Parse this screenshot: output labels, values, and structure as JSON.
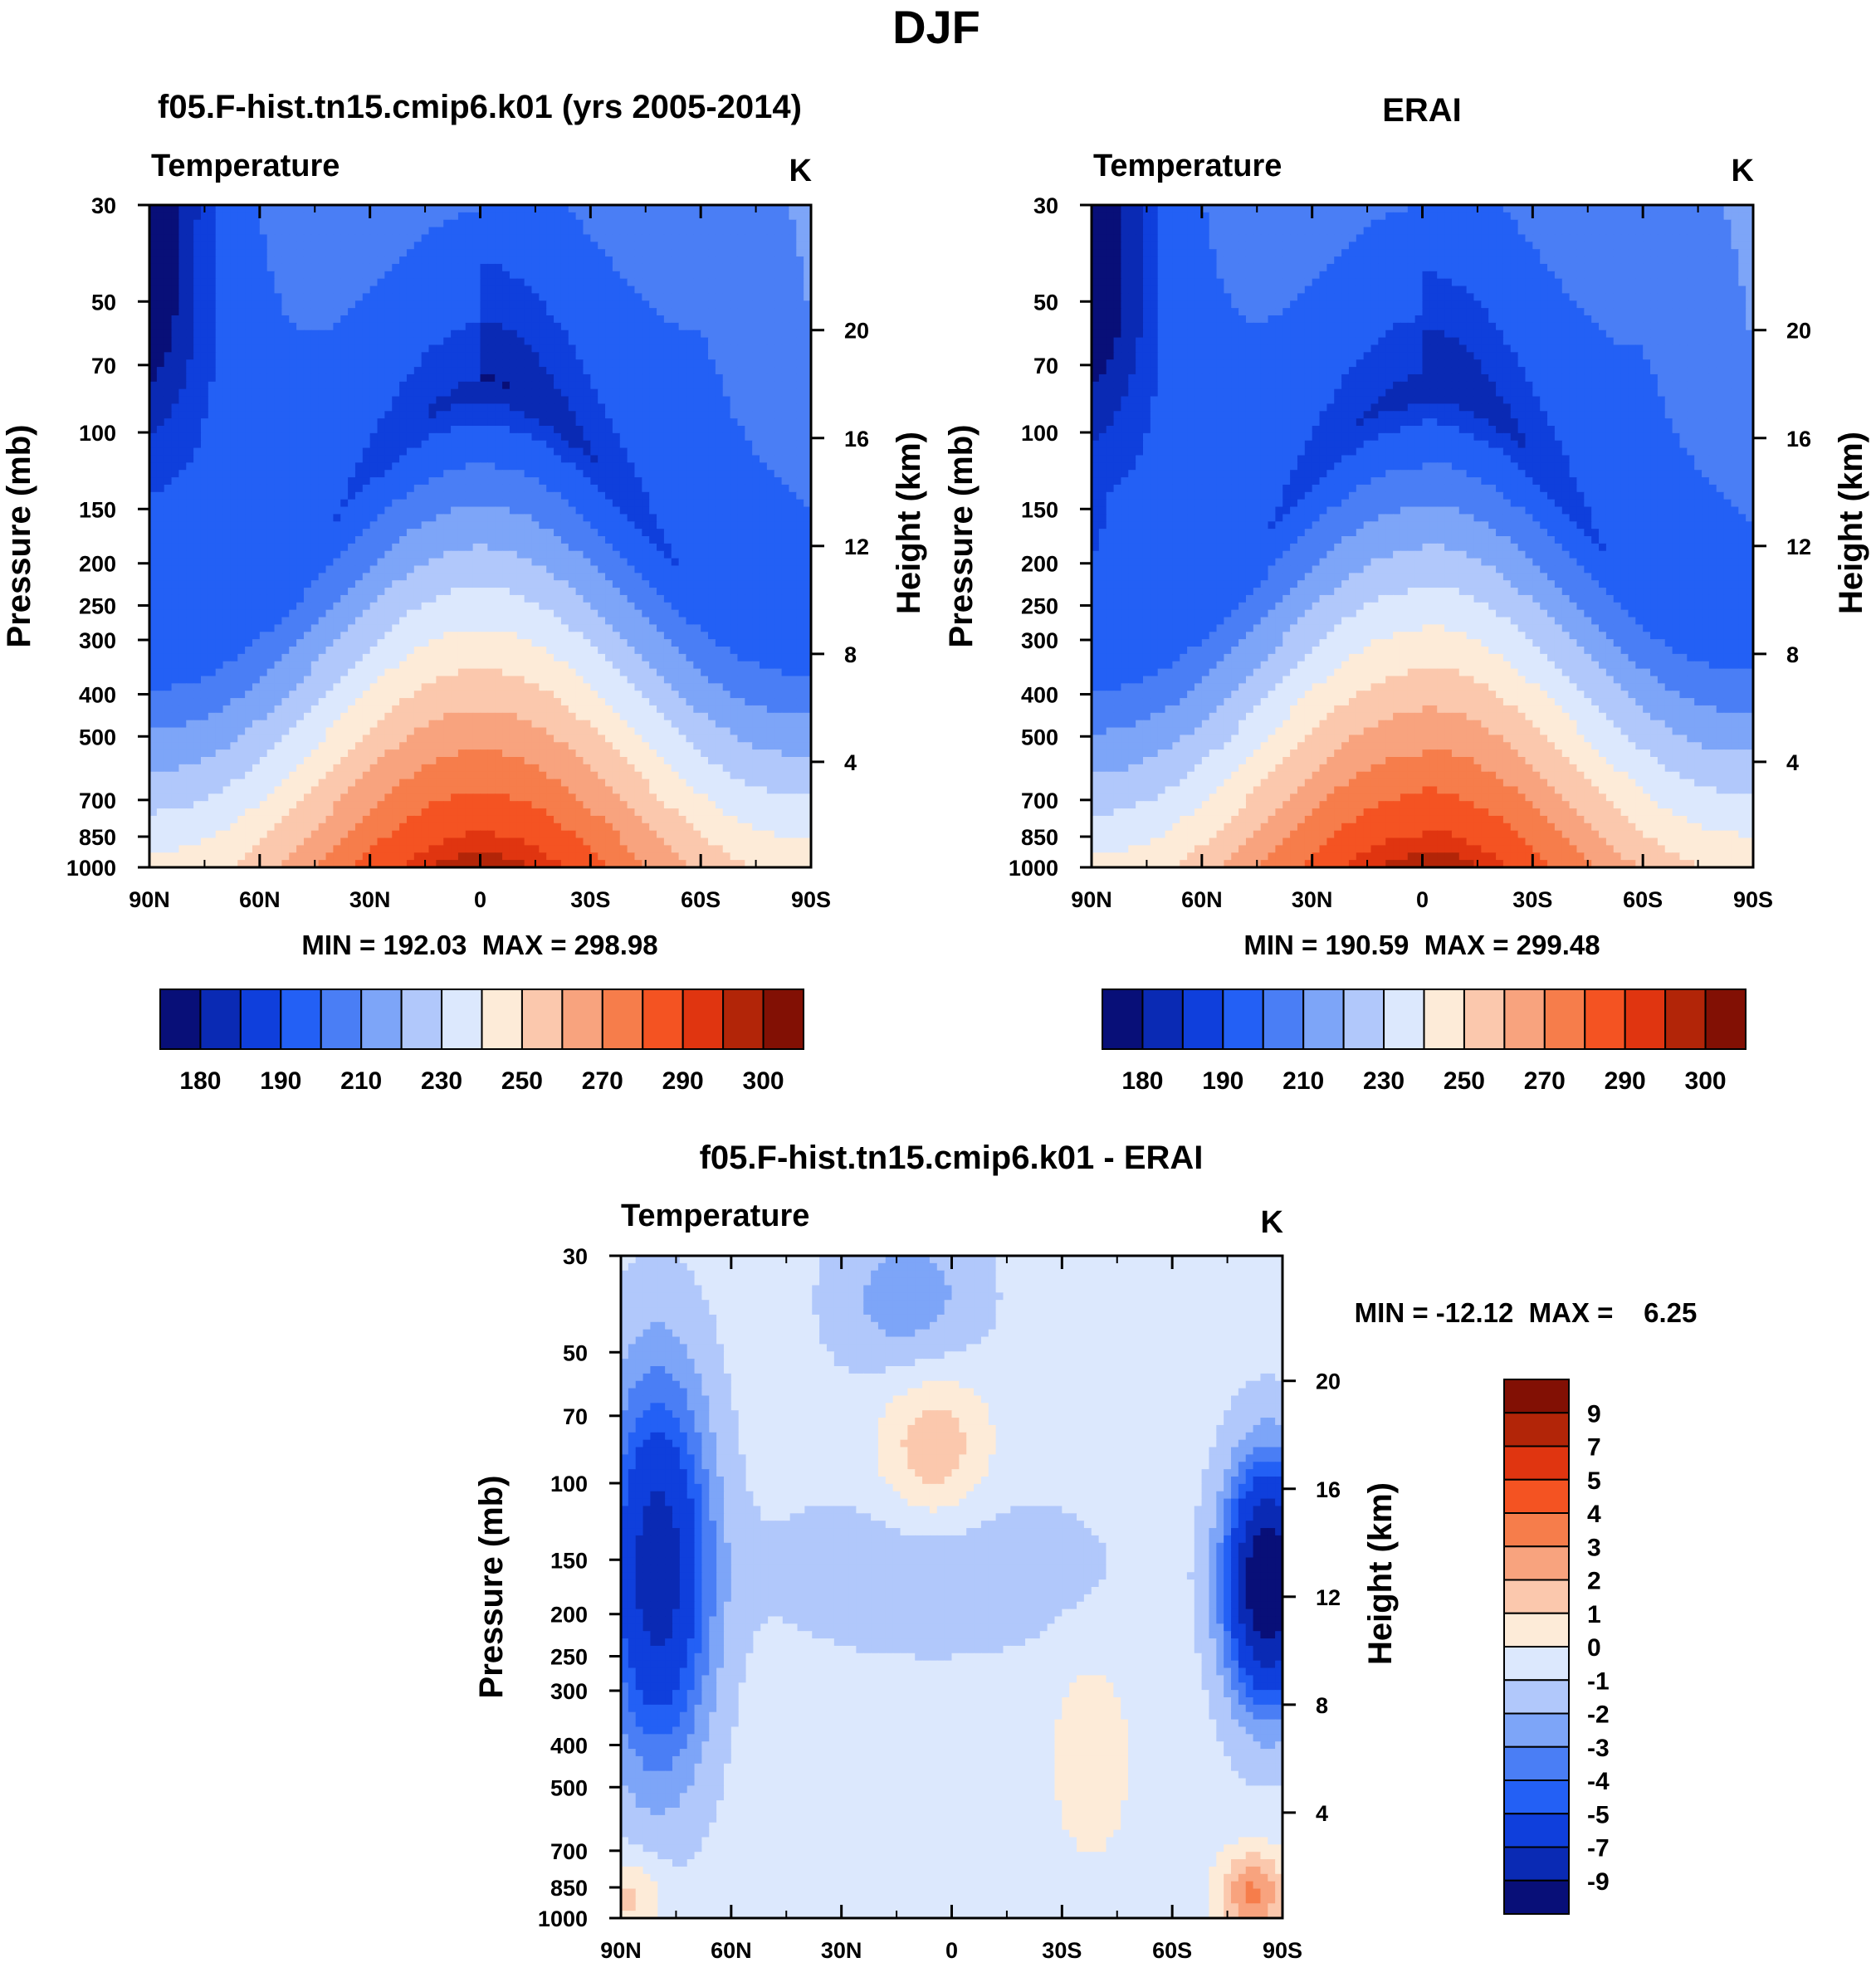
{
  "figure": {
    "title": "DJF"
  },
  "colors": {
    "abs_palette": [
      "#080f78",
      "#0a2ab4",
      "#0f3fdc",
      "#2360f5",
      "#4a7ef5",
      "#7da5f8",
      "#b1c8fb",
      "#dce8fd",
      "#fdebd8",
      "#fbc8ad",
      "#f8a37e",
      "#f67d4b",
      "#f45322",
      "#e03510",
      "#b22508",
      "#821004"
    ],
    "diff_palette": [
      "#080f78",
      "#0a2ab4",
      "#0f3fdc",
      "#2360f5",
      "#4a7ef5",
      "#7da5f8",
      "#b1c8fb",
      "#dce8fd",
      "#fdebd8",
      "#fbc8ad",
      "#f8a37e",
      "#f67d4b",
      "#f45322",
      "#e03510",
      "#b22508",
      "#821004"
    ]
  },
  "chart_data": [
    {
      "type": "heatmap",
      "title": "f05.F-hist.tn15.cmip6.k01 (yrs 2005-2014)",
      "left_label": "Temperature",
      "units": "K",
      "xlabel": "",
      "ylabel": "Pressure (mb)",
      "y2label": "Height (km)",
      "x_ticks": [
        "90N",
        "60N",
        "30N",
        "0",
        "30S",
        "60S",
        "90S"
      ],
      "x_values": [
        90,
        60,
        30,
        0,
        -30,
        -60,
        -90
      ],
      "y_ticks": [
        30,
        50,
        70,
        100,
        150,
        200,
        250,
        300,
        400,
        500,
        700,
        850,
        1000
      ],
      "y_scale": "log",
      "y_range": [
        1000,
        30
      ],
      "y2_ticks": [
        4,
        8,
        12,
        16,
        20
      ],
      "stats": "MIN = 192.03  MAX = 298.98",
      "min": 192.03,
      "max": 298.98,
      "colorbar_labels": [
        "180",
        "190",
        "210",
        "230",
        "250",
        "270",
        "290",
        "300"
      ]
    },
    {
      "type": "heatmap",
      "title": "ERAI",
      "left_label": "Temperature",
      "units": "K",
      "xlabel": "",
      "ylabel": "Pressure (mb)",
      "y2label": "Height (km)",
      "x_ticks": [
        "90N",
        "60N",
        "30N",
        "0",
        "30S",
        "60S",
        "90S"
      ],
      "x_values": [
        90,
        60,
        30,
        0,
        -30,
        -60,
        -90
      ],
      "y_ticks": [
        30,
        50,
        70,
        100,
        150,
        200,
        250,
        300,
        400,
        500,
        700,
        850,
        1000
      ],
      "y_scale": "log",
      "y_range": [
        1000,
        30
      ],
      "y2_ticks": [
        4,
        8,
        12,
        16,
        20
      ],
      "stats": "MIN = 190.59  MAX = 299.48",
      "min": 190.59,
      "max": 299.48,
      "colorbar_labels": [
        "180",
        "190",
        "210",
        "230",
        "250",
        "270",
        "290",
        "300"
      ]
    },
    {
      "type": "heatmap",
      "title": "f05.F-hist.tn15.cmip6.k01 - ERAI",
      "left_label": "Temperature",
      "units": "K",
      "xlabel": "",
      "ylabel": "Pressure (mb)",
      "y2label": "Height (km)",
      "x_ticks": [
        "90N",
        "60N",
        "30N",
        "0",
        "30S",
        "60S",
        "90S"
      ],
      "x_values": [
        90,
        60,
        30,
        0,
        -30,
        -60,
        -90
      ],
      "y_ticks": [
        30,
        50,
        70,
        100,
        150,
        200,
        250,
        300,
        400,
        500,
        700,
        850,
        1000
      ],
      "y_scale": "log",
      "y_range": [
        1000,
        30
      ],
      "y2_ticks": [
        4,
        8,
        12,
        16,
        20
      ],
      "stats": "MIN = -12.12  MAX =    6.25",
      "min": -12.12,
      "max": 6.25,
      "colorbar_labels": [
        "9",
        "7",
        "5",
        "4",
        "3",
        "2",
        "1",
        "0",
        "-1",
        "-2",
        "-3",
        "-4",
        "-5",
        "-7",
        "-9"
      ]
    }
  ]
}
